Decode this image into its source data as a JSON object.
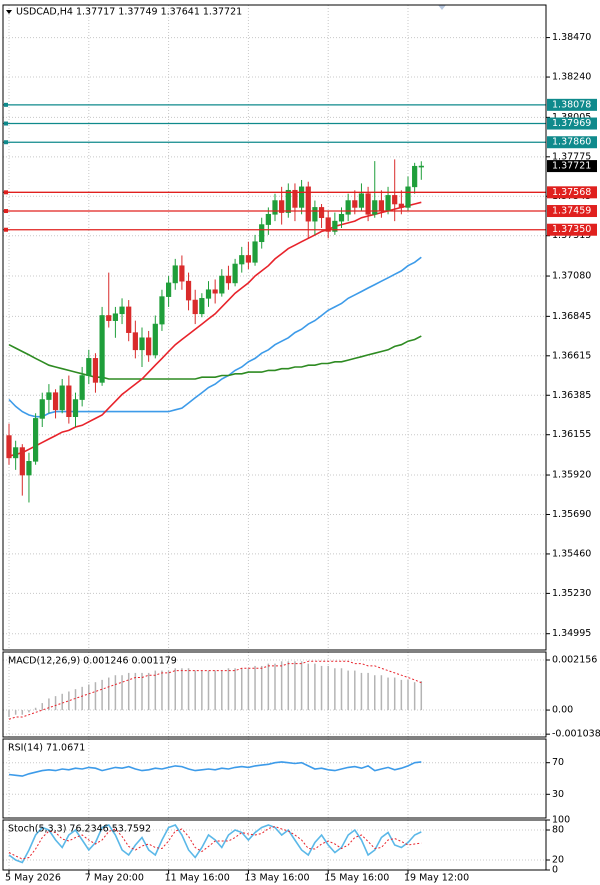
{
  "chart_data": [
    {
      "type": "candlestick",
      "title": "USDCAD,H4  1.37717 1.37749 1.37641 1.37721",
      "categories": [
        "5 May 2026",
        null,
        null,
        null,
        null,
        null,
        null,
        null,
        null,
        null,
        null,
        null,
        "7 May 20:00",
        null,
        null,
        null,
        null,
        null,
        null,
        null,
        null,
        null,
        null,
        null,
        "11 May 16:00",
        null,
        null,
        null,
        null,
        null,
        null,
        null,
        null,
        null,
        null,
        null,
        "13 May 16:00",
        null,
        null,
        null,
        null,
        null,
        null,
        null,
        null,
        null,
        null,
        null,
        "15 May 16:00",
        null,
        null,
        null,
        null,
        null,
        null,
        null,
        null,
        null,
        null,
        null,
        "19 May 12:00",
        null,
        null
      ],
      "open": [
        1.3615,
        1.3602,
        1.3608,
        1.3592,
        1.36,
        1.3625,
        1.3636,
        1.364,
        1.363,
        1.3644,
        1.3626,
        1.3636,
        1.365,
        1.366,
        1.3646,
        1.3685,
        1.3682,
        1.3686,
        1.369,
        1.3675,
        1.3665,
        1.3672,
        1.3662,
        1.368,
        1.3696,
        1.3704,
        1.3714,
        1.3705,
        1.3694,
        1.3686,
        1.3695,
        1.37,
        1.3698,
        1.3708,
        1.3704,
        1.3715,
        1.372,
        1.3716,
        1.3728,
        1.3738,
        1.3744,
        1.3752,
        1.3745,
        1.3758,
        1.3748,
        1.376,
        1.374,
        1.3748,
        1.3742,
        1.3734,
        1.374,
        1.3744,
        1.3752,
        1.3748,
        1.3756,
        1.3744,
        1.3752,
        1.3746,
        1.3755,
        1.375,
        1.3748,
        1.376,
        1.37717
      ],
      "high": [
        1.3622,
        1.3612,
        1.361,
        1.3605,
        1.3628,
        1.364,
        1.3645,
        1.3642,
        1.3648,
        1.365,
        1.364,
        1.3655,
        1.3665,
        1.3663,
        1.369,
        1.371,
        1.369,
        1.3695,
        1.3694,
        1.3682,
        1.3678,
        1.3676,
        1.3685,
        1.37,
        1.3708,
        1.3718,
        1.372,
        1.371,
        1.37,
        1.3698,
        1.3705,
        1.3706,
        1.3712,
        1.3714,
        1.3718,
        1.3725,
        1.3728,
        1.3732,
        1.3742,
        1.3748,
        1.3756,
        1.376,
        1.3762,
        1.3762,
        1.3764,
        1.3763,
        1.3752,
        1.375,
        1.3746,
        1.3745,
        1.3748,
        1.3756,
        1.3758,
        1.3762,
        1.376,
        1.3775,
        1.3758,
        1.376,
        1.3776,
        1.3758,
        1.3766,
        1.3774,
        1.37749
      ],
      "low": [
        1.3598,
        1.3595,
        1.358,
        1.3576,
        1.3598,
        1.362,
        1.3628,
        1.3625,
        1.3628,
        1.3622,
        1.362,
        1.3632,
        1.3645,
        1.364,
        1.3644,
        1.3678,
        1.3672,
        1.368,
        1.367,
        1.366,
        1.3655,
        1.3658,
        1.366,
        1.3676,
        1.369,
        1.37,
        1.37,
        1.3688,
        1.368,
        1.3684,
        1.369,
        1.3692,
        1.3696,
        1.37,
        1.3702,
        1.371,
        1.3712,
        1.3714,
        1.3724,
        1.3732,
        1.374,
        1.3738,
        1.3742,
        1.374,
        1.3744,
        1.373,
        1.3732,
        1.3736,
        1.373,
        1.3732,
        1.3736,
        1.374,
        1.3744,
        1.3746,
        1.374,
        1.3742,
        1.3742,
        1.3744,
        1.374,
        1.3744,
        1.3746,
        1.3756,
        1.37641
      ],
      "close": [
        1.3602,
        1.3608,
        1.3592,
        1.36,
        1.3625,
        1.3636,
        1.364,
        1.363,
        1.3644,
        1.3626,
        1.3636,
        1.365,
        1.366,
        1.3646,
        1.3685,
        1.3682,
        1.3686,
        1.369,
        1.3675,
        1.3665,
        1.3672,
        1.3662,
        1.368,
        1.3696,
        1.3704,
        1.3714,
        1.3705,
        1.3694,
        1.3686,
        1.3695,
        1.37,
        1.3698,
        1.3708,
        1.3704,
        1.3715,
        1.372,
        1.3716,
        1.3728,
        1.3738,
        1.3744,
        1.3752,
        1.3745,
        1.3758,
        1.3748,
        1.376,
        1.374,
        1.3748,
        1.3742,
        1.3734,
        1.374,
        1.3744,
        1.3752,
        1.3748,
        1.3756,
        1.3744,
        1.3752,
        1.3746,
        1.3755,
        1.375,
        1.3748,
        1.376,
        1.3772,
        1.37721
      ],
      "up_color": "#1f9e3a",
      "down_color": "#d92b2b",
      "series": [
        {
          "style": "line",
          "color": "#3d9be9",
          "values": [
            1.3636,
            1.3632,
            1.3629,
            1.3627,
            1.3626,
            1.3626,
            1.3628,
            1.3629,
            1.3629,
            1.3629,
            1.3629,
            1.3629,
            1.3629,
            1.3629,
            1.3629,
            1.3629,
            1.3629,
            1.3629,
            1.3629,
            1.3629,
            1.3629,
            1.3629,
            1.3629,
            1.3629,
            1.3629,
            1.363,
            1.3631,
            1.3634,
            1.3637,
            1.364,
            1.3643,
            1.3645,
            1.3648,
            1.365,
            1.3653,
            1.3655,
            1.3658,
            1.366,
            1.3663,
            1.3665,
            1.3668,
            1.367,
            1.3672,
            1.3675,
            1.3677,
            1.368,
            1.3682,
            1.3685,
            1.3688,
            1.369,
            1.3692,
            1.3695,
            1.3697,
            1.3699,
            1.3701,
            1.3703,
            1.3705,
            1.3707,
            1.3709,
            1.3711,
            1.3714,
            1.3716,
            1.3719
          ]
        },
        {
          "style": "line",
          "color": "#2e8b22",
          "values": [
            1.3668,
            1.3666,
            1.3664,
            1.3662,
            1.366,
            1.3658,
            1.3656,
            1.3655,
            1.3654,
            1.3653,
            1.3652,
            1.3651,
            1.365,
            1.3649,
            1.3649,
            1.3648,
            1.3648,
            1.3648,
            1.3648,
            1.3648,
            1.3648,
            1.3648,
            1.3648,
            1.3648,
            1.3648,
            1.3648,
            1.3648,
            1.3648,
            1.3648,
            1.3649,
            1.3649,
            1.3649,
            1.365,
            1.365,
            1.3651,
            1.3651,
            1.3652,
            1.3652,
            1.3652,
            1.3653,
            1.3653,
            1.3654,
            1.3654,
            1.3655,
            1.3655,
            1.3656,
            1.3656,
            1.3657,
            1.3657,
            1.3658,
            1.3658,
            1.3659,
            1.366,
            1.3661,
            1.3662,
            1.3663,
            1.3664,
            1.3665,
            1.3667,
            1.3668,
            1.367,
            1.3671,
            1.3673
          ]
        },
        {
          "style": "line",
          "color": "#e8232b",
          "values": [
            1.3603,
            1.3604,
            1.3605,
            1.3607,
            1.3609,
            1.3611,
            1.3613,
            1.3615,
            1.3617,
            1.3618,
            1.362,
            1.3621,
            1.3623,
            1.3625,
            1.3627,
            1.3631,
            1.3635,
            1.3639,
            1.3642,
            1.3645,
            1.3648,
            1.3652,
            1.3656,
            1.366,
            1.3664,
            1.3668,
            1.3671,
            1.3674,
            1.3677,
            1.368,
            1.3683,
            1.3686,
            1.369,
            1.3694,
            1.3698,
            1.3701,
            1.3704,
            1.3708,
            1.3711,
            1.3714,
            1.3718,
            1.3721,
            1.3724,
            1.3726,
            1.3728,
            1.373,
            1.3732,
            1.3734,
            1.3735,
            1.3737,
            1.3738,
            1.3739,
            1.374,
            1.3742,
            1.3743,
            1.3744,
            1.3745,
            1.3746,
            1.3747,
            1.3748,
            1.3749,
            1.375,
            1.3751
          ]
        }
      ],
      "levels": [
        {
          "value": 1.38078,
          "label": "1.38078",
          "color": "#0f8a8c"
        },
        {
          "value": 1.37969,
          "label": "1.37969",
          "color": "#0f8a8c"
        },
        {
          "value": 1.3786,
          "label": "1.37860",
          "color": "#0f8a8c"
        },
        {
          "value": 1.37568,
          "label": "1.37568",
          "color": "#e0201e"
        },
        {
          "value": 1.37459,
          "label": "1.37459",
          "color": "#e0201e"
        },
        {
          "value": 1.3735,
          "label": "1.37350",
          "color": "#e0201e"
        }
      ],
      "last_price": 1.37721,
      "ylim": [
        1.349,
        1.3866
      ],
      "yticks": [
        {
          "value": 1.3847,
          "label": "1.38470"
        },
        {
          "value": 1.3824,
          "label": "1.38240"
        },
        {
          "value": 1.38005,
          "label": "1.38005"
        },
        {
          "value": 1.37775,
          "label": "1.37775"
        },
        {
          "value": 1.37545,
          "label": "1.37545"
        },
        {
          "value": 1.37315,
          "label": "1.37315"
        },
        {
          "value": 1.3708,
          "label": "1.37080"
        },
        {
          "value": 1.36845,
          "label": "1.36845"
        },
        {
          "value": 1.36615,
          "label": "1.36615"
        },
        {
          "value": 1.36385,
          "label": "1.36385"
        },
        {
          "value": 1.36155,
          "label": "1.36155"
        },
        {
          "value": 1.3592,
          "label": "1.35920"
        },
        {
          "value": 1.3569,
          "label": "1.35690"
        },
        {
          "value": 1.3546,
          "label": "1.35460"
        },
        {
          "value": 1.3523,
          "label": "1.35230"
        },
        {
          "value": 1.34995,
          "label": "1.34995"
        }
      ],
      "grid": true
    },
    {
      "type": "indicator",
      "title": "MACD(12,26,9) 0.001246 0.001179",
      "series": [
        {
          "style": "bar",
          "color": "#b4b4b4",
          "values": [
            -0.0003,
            -0.0002,
            -0.0002,
            -0.0001,
            0.0001,
            0.0003,
            0.0005,
            0.0006,
            0.0007,
            0.0008,
            0.0009,
            0.001,
            0.0011,
            0.0012,
            0.0013,
            0.0014,
            0.0015,
            0.0015,
            0.0016,
            0.0016,
            0.0016,
            0.0016,
            0.0017,
            0.0017,
            0.0017,
            0.0018,
            0.0018,
            0.0018,
            0.0017,
            0.0017,
            0.0017,
            0.0017,
            0.0017,
            0.0018,
            0.0018,
            0.0018,
            0.0018,
            0.0019,
            0.0019,
            0.002,
            0.002,
            0.0021,
            0.0021,
            0.0021,
            0.0021,
            0.002,
            0.002,
            0.0019,
            0.0019,
            0.0018,
            0.0018,
            0.0017,
            0.0017,
            0.0016,
            0.0016,
            0.0015,
            0.0015,
            0.0014,
            0.0014,
            0.0013,
            0.0013,
            0.0012,
            0.001246
          ]
        },
        {
          "style": "dash",
          "color": "#e8232b",
          "values": [
            -0.0004,
            -0.0003,
            -0.0003,
            -0.0002,
            -0.0001,
            0.0,
            0.0001,
            0.0002,
            0.0003,
            0.0004,
            0.0005,
            0.0006,
            0.0007,
            0.0008,
            0.0009,
            0.001,
            0.0011,
            0.0012,
            0.0013,
            0.0014,
            0.0014,
            0.0015,
            0.0015,
            0.0016,
            0.0016,
            0.0017,
            0.0017,
            0.0017,
            0.0017,
            0.0017,
            0.0017,
            0.0017,
            0.0017,
            0.0017,
            0.0017,
            0.0018,
            0.0018,
            0.0018,
            0.0018,
            0.0019,
            0.0019,
            0.0019,
            0.002,
            0.002,
            0.002,
            0.0021,
            0.0021,
            0.0021,
            0.0021,
            0.0021,
            0.0021,
            0.0021,
            0.002,
            0.002,
            0.0019,
            0.0019,
            0.0018,
            0.0017,
            0.0016,
            0.0015,
            0.0014,
            0.0013,
            0.001179
          ]
        }
      ],
      "ylim": [
        -0.00116,
        0.0025
      ],
      "yticks": [
        0.002156,
        {
          "value": 0,
          "label": "0.00"
        },
        -0.001038
      ],
      "grid": true
    },
    {
      "type": "indicator",
      "title": "RSI(14) 71.0671",
      "series": [
        {
          "style": "line",
          "color": "#3d9be9",
          "values": [
            55,
            54,
            53,
            56,
            58,
            60,
            61,
            60,
            62,
            61,
            63,
            62,
            64,
            63,
            60,
            62,
            64,
            63,
            65,
            62,
            60,
            61,
            63,
            62,
            64,
            66,
            65,
            62,
            60,
            61,
            62,
            61,
            63,
            62,
            64,
            65,
            64,
            66,
            67,
            68,
            70,
            71,
            70,
            69,
            70,
            66,
            62,
            63,
            61,
            60,
            62,
            64,
            65,
            63,
            66,
            60,
            62,
            64,
            61,
            63,
            66,
            70,
            71.0671
          ]
        }
      ],
      "ylim": [
        0,
        100
      ],
      "yticks": [
        70,
        30
      ],
      "grid": true
    },
    {
      "type": "indicator",
      "title": "Stoch(5,3,3) 76.2346 53.7592",
      "series": [
        {
          "style": "line",
          "color": "#5bb8e8",
          "values": [
            30,
            20,
            15,
            40,
            70,
            85,
            80,
            60,
            45,
            70,
            80,
            60,
            40,
            55,
            85,
            90,
            70,
            40,
            30,
            50,
            65,
            40,
            30,
            60,
            85,
            90,
            70,
            40,
            25,
            45,
            70,
            60,
            45,
            70,
            80,
            75,
            60,
            75,
            85,
            90,
            85,
            70,
            80,
            60,
            40,
            30,
            55,
            70,
            50,
            35,
            45,
            70,
            80,
            60,
            30,
            40,
            65,
            75,
            50,
            45,
            55,
            70,
            76.2346
          ]
        },
        {
          "style": "dash",
          "color": "#e8232b",
          "values": [
            35,
            28,
            22,
            25,
            42,
            65,
            78,
            75,
            62,
            58,
            65,
            70,
            60,
            52,
            60,
            77,
            82,
            67,
            47,
            40,
            48,
            52,
            45,
            43,
            58,
            78,
            82,
            67,
            45,
            37,
            47,
            58,
            58,
            58,
            65,
            75,
            72,
            70,
            73,
            83,
            87,
            82,
            78,
            70,
            60,
            43,
            42,
            52,
            58,
            52,
            43,
            50,
            65,
            70,
            57,
            43,
            45,
            60,
            63,
            57,
            50,
            52,
            53.7592
          ]
        }
      ],
      "ylim": [
        0,
        100
      ],
      "yticks": [
        100,
        80,
        20,
        0
      ],
      "grid": true
    }
  ]
}
